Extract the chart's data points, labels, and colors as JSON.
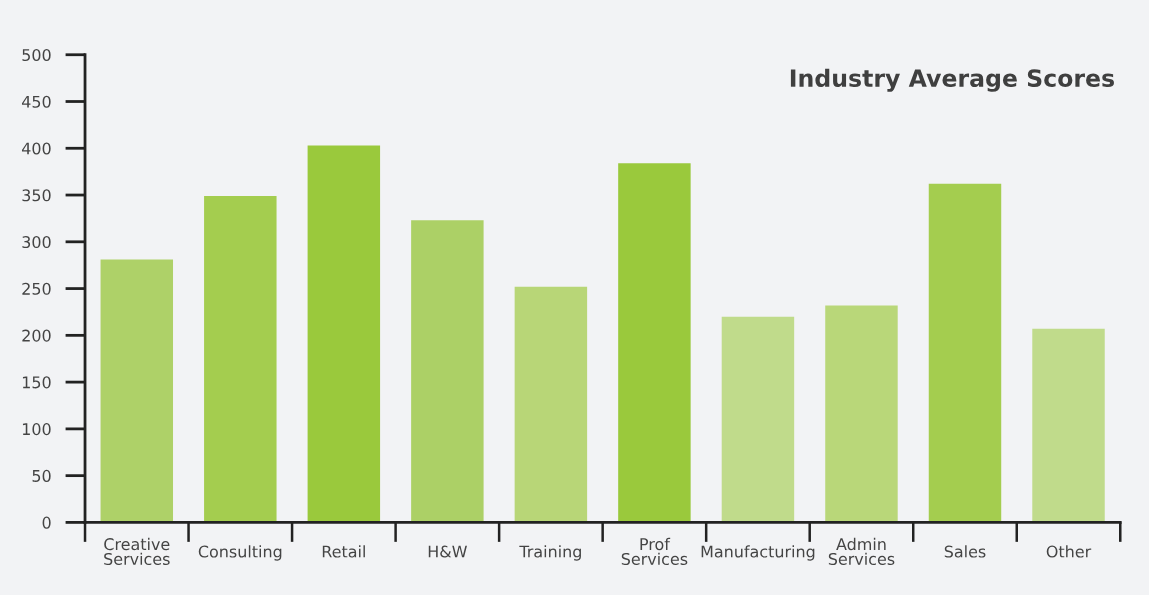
{
  "chart_data": {
    "type": "bar",
    "title": "Industry Average Scores",
    "categories": [
      "Creative\nServices",
      "Consulting",
      "Retail",
      "H&W",
      "Training",
      "Prof\nServices",
      "Manufacturing",
      "Admin\nServices",
      "Sales",
      "Other"
    ],
    "values": [
      281,
      349,
      403,
      323,
      252,
      384,
      220,
      232,
      362,
      207
    ],
    "colors": [
      "#aed168",
      "#a4cd4f",
      "#9ac93c",
      "#acd066",
      "#b8d677",
      "#9ac93c",
      "#c0db8b",
      "#b9d779",
      "#a4cd4f",
      "#c0db8b"
    ],
    "ylim": [
      0,
      500
    ],
    "yticks": [
      0,
      50,
      100,
      150,
      200,
      250,
      300,
      350,
      400,
      450,
      500
    ],
    "grid": false,
    "legend": false
  }
}
